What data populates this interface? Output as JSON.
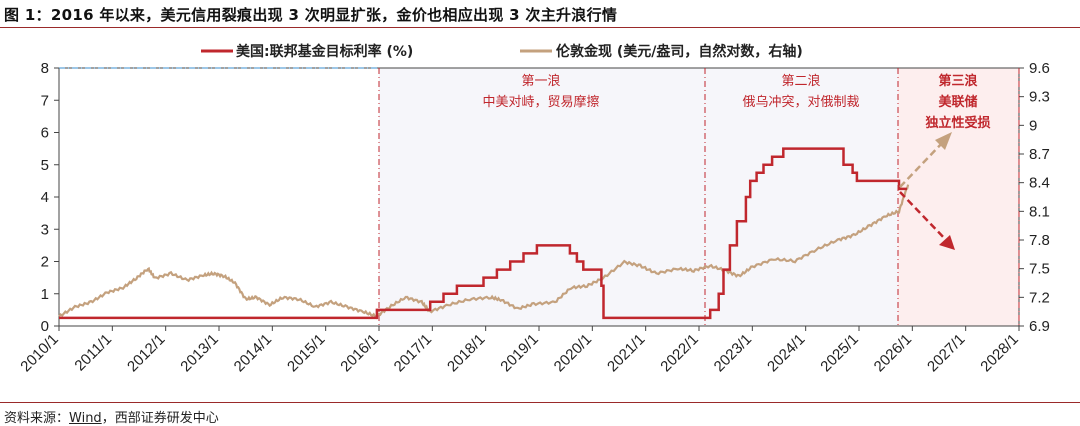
{
  "figure": {
    "title": "图 1：2016 年以来，美元信用裂痕出现 3 次明显扩张，金价也相应出现 3 次主升浪行情",
    "source_prefix": "资料来源：",
    "source_link": "Wind",
    "source_suffix": "，西部证券研发中心"
  },
  "colors": {
    "rate_line": "#c0272d",
    "gold_line": "#c4a17e",
    "wave_text": "#c0272d",
    "shade": "#f6f6fa",
    "shade3": "#fdeeee"
  },
  "chart_data": {
    "type": "line",
    "legend": [
      {
        "name": "美国:联邦基金目标利率 (%)",
        "color": "#c0272d"
      },
      {
        "name": "伦敦金现 (美元/盎司，自然对数，右轴)",
        "color": "#c4a17e"
      }
    ],
    "left_axis": {
      "ylim": [
        0,
        8
      ],
      "ticks": [
        "0",
        "1",
        "2",
        "3",
        "4",
        "5",
        "6",
        "7",
        "8"
      ]
    },
    "right_axis": {
      "ylim": [
        6.9,
        9.6
      ],
      "ticks": [
        "6.9",
        "7.2",
        "7.5",
        "7.8",
        "8.1",
        "8.4",
        "8.7",
        "9",
        "9.3",
        "9.6"
      ]
    },
    "x_axis": {
      "xlim": [
        2010,
        2028
      ],
      "ticks": [
        "2010/1",
        "2011/1",
        "2012/1",
        "2013/1",
        "2014/1",
        "2015/1",
        "2016/1",
        "2017/1",
        "2018/1",
        "2019/1",
        "2020/1",
        "2021/1",
        "2022/1",
        "2023/1",
        "2024/1",
        "2025/1",
        "2026/1",
        "2027/1",
        "2028/1"
      ]
    },
    "fed_rate_steps": [
      [
        2010.0,
        0.25
      ],
      [
        2015.96,
        0.5
      ],
      [
        2016.96,
        0.75
      ],
      [
        2017.21,
        1.0
      ],
      [
        2017.46,
        1.25
      ],
      [
        2017.96,
        1.5
      ],
      [
        2018.21,
        1.75
      ],
      [
        2018.46,
        2.0
      ],
      [
        2018.71,
        2.25
      ],
      [
        2018.96,
        2.5
      ],
      [
        2019.58,
        2.25
      ],
      [
        2019.71,
        2.0
      ],
      [
        2019.83,
        1.75
      ],
      [
        2020.17,
        1.25
      ],
      [
        2020.21,
        0.25
      ],
      [
        2022.21,
        0.5
      ],
      [
        2022.37,
        1.0
      ],
      [
        2022.46,
        1.75
      ],
      [
        2022.58,
        2.5
      ],
      [
        2022.71,
        3.25
      ],
      [
        2022.88,
        4.0
      ],
      [
        2022.96,
        4.5
      ],
      [
        2023.08,
        4.75
      ],
      [
        2023.21,
        5.0
      ],
      [
        2023.37,
        5.25
      ],
      [
        2023.58,
        5.5
      ],
      [
        2024.71,
        5.0
      ],
      [
        2024.88,
        4.75
      ],
      [
        2024.96,
        4.5
      ],
      [
        2025.75,
        4.25
      ],
      [
        2025.9,
        4.25
      ]
    ],
    "gold_log": [
      [
        2010.0,
        7.0
      ],
      [
        2010.3,
        7.1
      ],
      [
        2010.6,
        7.15
      ],
      [
        2010.9,
        7.25
      ],
      [
        2011.2,
        7.3
      ],
      [
        2011.45,
        7.4
      ],
      [
        2011.67,
        7.5
      ],
      [
        2011.8,
        7.4
      ],
      [
        2012.1,
        7.45
      ],
      [
        2012.4,
        7.38
      ],
      [
        2012.7,
        7.43
      ],
      [
        2012.9,
        7.45
      ],
      [
        2013.1,
        7.42
      ],
      [
        2013.3,
        7.35
      ],
      [
        2013.5,
        7.18
      ],
      [
        2013.7,
        7.2
      ],
      [
        2013.95,
        7.12
      ],
      [
        2014.2,
        7.2
      ],
      [
        2014.5,
        7.18
      ],
      [
        2014.8,
        7.1
      ],
      [
        2015.1,
        7.15
      ],
      [
        2015.4,
        7.1
      ],
      [
        2015.7,
        7.05
      ],
      [
        2015.95,
        7.0
      ],
      [
        2016.2,
        7.1
      ],
      [
        2016.5,
        7.2
      ],
      [
        2016.8,
        7.15
      ],
      [
        2016.95,
        7.05
      ],
      [
        2017.3,
        7.12
      ],
      [
        2017.7,
        7.18
      ],
      [
        2018.1,
        7.2
      ],
      [
        2018.3,
        7.17
      ],
      [
        2018.6,
        7.08
      ],
      [
        2018.9,
        7.13
      ],
      [
        2019.3,
        7.15
      ],
      [
        2019.6,
        7.3
      ],
      [
        2019.9,
        7.32
      ],
      [
        2020.2,
        7.4
      ],
      [
        2020.6,
        7.57
      ],
      [
        2020.9,
        7.53
      ],
      [
        2021.2,
        7.45
      ],
      [
        2021.6,
        7.5
      ],
      [
        2021.9,
        7.48
      ],
      [
        2022.2,
        7.53
      ],
      [
        2022.5,
        7.48
      ],
      [
        2022.75,
        7.42
      ],
      [
        2023.0,
        7.52
      ],
      [
        2023.4,
        7.6
      ],
      [
        2023.8,
        7.58
      ],
      [
        2024.2,
        7.7
      ],
      [
        2024.6,
        7.8
      ],
      [
        2024.9,
        7.85
      ],
      [
        2025.2,
        7.95
      ],
      [
        2025.5,
        8.05
      ],
      [
        2025.75,
        8.1
      ],
      [
        2025.92,
        8.38
      ]
    ],
    "waves": [
      {
        "label1": "第一浪",
        "label2": "中美对峙，贸易摩擦",
        "start": 2016.0,
        "end": 2022.0
      },
      {
        "label1": "第二浪",
        "label2": "俄乌冲突，对俄制裁",
        "start": 2022.0,
        "end": 2025.83
      },
      {
        "label1": "第三浪",
        "label2": "美联储",
        "label3": "独立性受损",
        "start": 2025.83,
        "end": 2028.0
      }
    ]
  }
}
